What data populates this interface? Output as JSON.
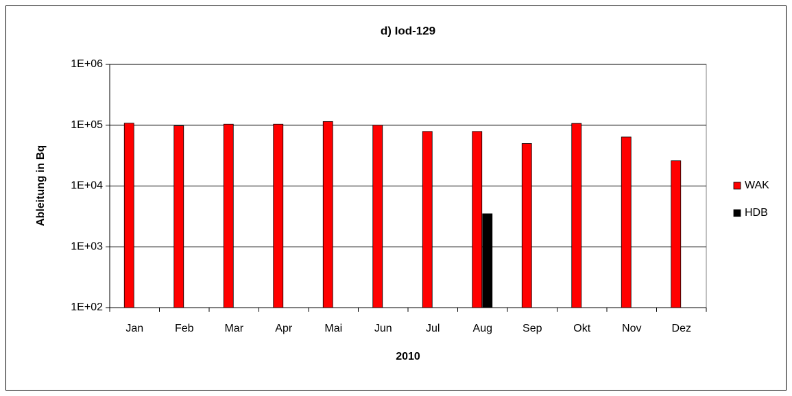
{
  "chart_data": {
    "type": "bar",
    "title": "d) Iod-129",
    "xlabel": "2010",
    "ylabel": "Ableitung in Bq",
    "categories": [
      "Jan",
      "Feb",
      "Mar",
      "Apr",
      "Mai",
      "Jun",
      "Jul",
      "Aug",
      "Sep",
      "Okt",
      "Nov",
      "Dez"
    ],
    "series": [
      {
        "name": "WAK",
        "color": "#ff0000",
        "values": [
          108000,
          98000,
          104000,
          104000,
          115000,
          100000,
          79000,
          79000,
          50000,
          107000,
          64000,
          26000
        ]
      },
      {
        "name": "HDB",
        "color": "#000000",
        "values": [
          null,
          null,
          null,
          null,
          null,
          null,
          null,
          3500,
          null,
          null,
          null,
          null
        ]
      }
    ],
    "ylim": [
      100,
      1000000
    ],
    "log_y": true,
    "yticks": [
      {
        "value": 100,
        "label": "1E+02"
      },
      {
        "value": 1000,
        "label": "1E+03"
      },
      {
        "value": 10000,
        "label": "1E+04"
      },
      {
        "value": 100000,
        "label": "1E+05"
      },
      {
        "value": 1000000,
        "label": "1E+06"
      }
    ],
    "grid": true,
    "legend": "right"
  }
}
